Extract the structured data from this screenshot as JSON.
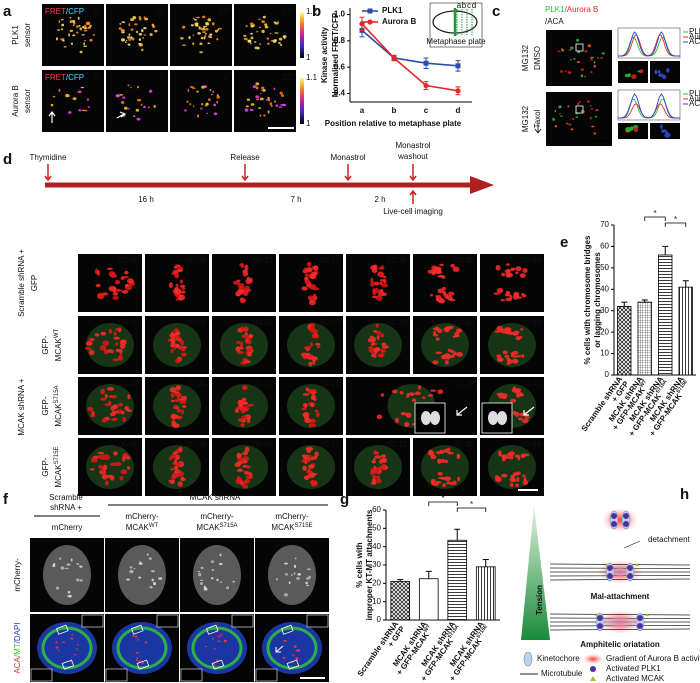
{
  "panel_a": {
    "letter": "a",
    "row_labels": [
      [
        "PLK1",
        "sensor"
      ],
      [
        "Aurora B",
        "sensor"
      ]
    ],
    "legend": [
      "FRET",
      "/CFP"
    ],
    "times": [
      [
        "0'",
        "10'",
        "15'",
        "17'"
      ],
      [
        "0'",
        "6'",
        "9'",
        "12'"
      ]
    ],
    "colorbar_ticks": [
      [
        1.2,
        1
      ],
      [
        1.1,
        1
      ]
    ]
  },
  "panel_b": {
    "type": "line",
    "letter": "b",
    "y_label": [
      "Kinase activity",
      "Normalized FRET/CFP"
    ],
    "x_label": "Position relative to metaphase plate",
    "categories": [
      "a",
      "b",
      "c",
      "d"
    ],
    "ylim": [
      0.35,
      1.05
    ],
    "yticks": [
      0.4,
      0.6,
      0.8,
      {
        "value": 1,
        "label": "1.0"
      }
    ],
    "series": [
      {
        "name": "PLK1",
        "color": "#2b4fa8",
        "values": [
          0.88,
          0.67,
          0.63,
          0.61
        ],
        "errors": [
          0.05,
          0.02,
          0.04,
          0.04
        ]
      },
      {
        "name": "Aurora B",
        "color": "#e8262b",
        "values": [
          0.93,
          0.67,
          0.46,
          0.42
        ],
        "errors": [
          0.05,
          0.02,
          0.03,
          0.03
        ]
      }
    ],
    "inset_label": "Metaphase plate",
    "inset_letters": [
      "a",
      "b",
      "c",
      "d"
    ]
  },
  "panel_c": {
    "letter": "c",
    "title": [
      "PLK1",
      "/Aurora B",
      "/ACA"
    ],
    "row_labels": [
      [
        "MG132",
        "DMSO"
      ],
      [
        "MG132",
        "Taxol"
      ]
    ],
    "legend": [
      "PLK1",
      "Aurora B",
      "ACA"
    ]
  },
  "panel_d": {
    "letter": "d",
    "timeline": {
      "events": [
        "Thymidine",
        "Release",
        "Monastrol"
      ],
      "washout": [
        "Monastrol",
        "washout"
      ],
      "intervals": [
        "16 h",
        "7 h",
        "2 h"
      ],
      "imaging": "Live-cell imaging"
    },
    "group_label": "MCAK shRNA +",
    "rows": [
      {
        "label": [
          "Scramble shRNA +",
          "GFP"
        ],
        "times": [
          "00:00",
          "00:04",
          "00:12",
          "00:20",
          "00:36",
          "00:40",
          "00:48"
        ]
      },
      {
        "label": [
          "GFP-",
          "MCAK"
        ],
        "sup": "WT",
        "times": [
          "00:00",
          "00:04",
          "00:12",
          "00:20",
          "00:36",
          "00:40",
          "00:48"
        ]
      },
      {
        "label": [
          "GFP-",
          "MCAK"
        ],
        "sup": "S715A",
        "times": [
          "00:00",
          "00:04",
          "00:12",
          "00:20",
          "00:36",
          "00:40"
        ]
      },
      {
        "label": [
          "GFP-",
          "MCAK"
        ],
        "sup": "S715E",
        "times": [
          "00:00",
          "00:04",
          "00:08",
          "00:20",
          "00:32",
          "00:40",
          "00:44"
        ]
      }
    ]
  },
  "panel_e": {
    "type": "bar",
    "letter": "e",
    "y_label": [
      "% cells with chromosome bridges",
      "or lagging chromosomes"
    ],
    "categories": [
      {
        "lines": [
          "Scramble shRNA",
          "+ GFP"
        ]
      },
      {
        "lines": [
          "MCAK shRNA",
          "+ GFP-MCAK"
        ],
        "sup": "WT"
      },
      {
        "lines": [
          "MCAK shRNA",
          "+ GFP-MCAK"
        ],
        "sup": "S715A"
      },
      {
        "lines": [
          "MCAK shRNA",
          "+ GFP-MCAK"
        ],
        "sup": "S715E"
      }
    ],
    "values": [
      32,
      34,
      56,
      41
    ],
    "errors": [
      2,
      1,
      4,
      3
    ],
    "ylim": [
      0,
      70
    ],
    "yticks": [
      0,
      10,
      20,
      30,
      40,
      50,
      60,
      70
    ],
    "significance": [
      "*",
      "*"
    ]
  },
  "panel_f": {
    "letter": "f",
    "group_headers": [
      [
        "Scramble",
        "shRNA +"
      ],
      "MCAK shRNA"
    ],
    "columns": [
      {
        "lines": [
          "mCherry"
        ]
      },
      {
        "lines": [
          "mCherry-",
          "MCAK"
        ],
        "sup": "WT"
      },
      {
        "lines": [
          "mCherry-",
          "MCAK"
        ],
        "sup": "S715A"
      },
      {
        "lines": [
          "mCherry-",
          "MCAK"
        ],
        "sup": "S715E"
      }
    ],
    "row_labels": [
      "mCherry-",
      [
        "ACA",
        "/MT",
        "/DAPI"
      ]
    ]
  },
  "panel_g": {
    "type": "bar",
    "letter": "g",
    "y_label": [
      "% cells with",
      "improper KT-MT attachments"
    ],
    "categories": [
      {
        "lines": [
          "Scramble shRNA",
          "+ GFP"
        ]
      },
      {
        "lines": [
          "MCAK shRNA",
          "+ GFP-MCAK"
        ],
        "sup": "WT"
      },
      {
        "lines": [
          "MCAK shRNA",
          "+ GFP-MCAK"
        ],
        "sup": "S715A"
      },
      {
        "lines": [
          "MCAK shRNA",
          "+ GFP-MCAK"
        ],
        "sup": "S715E"
      }
    ],
    "values": [
      21,
      22.5,
      43.5,
      29
    ],
    "errors": [
      1,
      4,
      6,
      4
    ],
    "ylim": [
      0,
      60
    ],
    "yticks": [
      0,
      10,
      20,
      30,
      40,
      50,
      60
    ],
    "significance": [
      "*",
      "*"
    ]
  },
  "panel_h": {
    "letter": "h",
    "tension": "Tension",
    "detachment": "detachment",
    "states": [
      "Mal-attachment",
      "Amphitelic oriatation"
    ],
    "legend": [
      "Kinetochore",
      "Gradient of Aurora B activity",
      "Microtubule",
      "Activated PLK1",
      "Activated MCAK"
    ]
  }
}
